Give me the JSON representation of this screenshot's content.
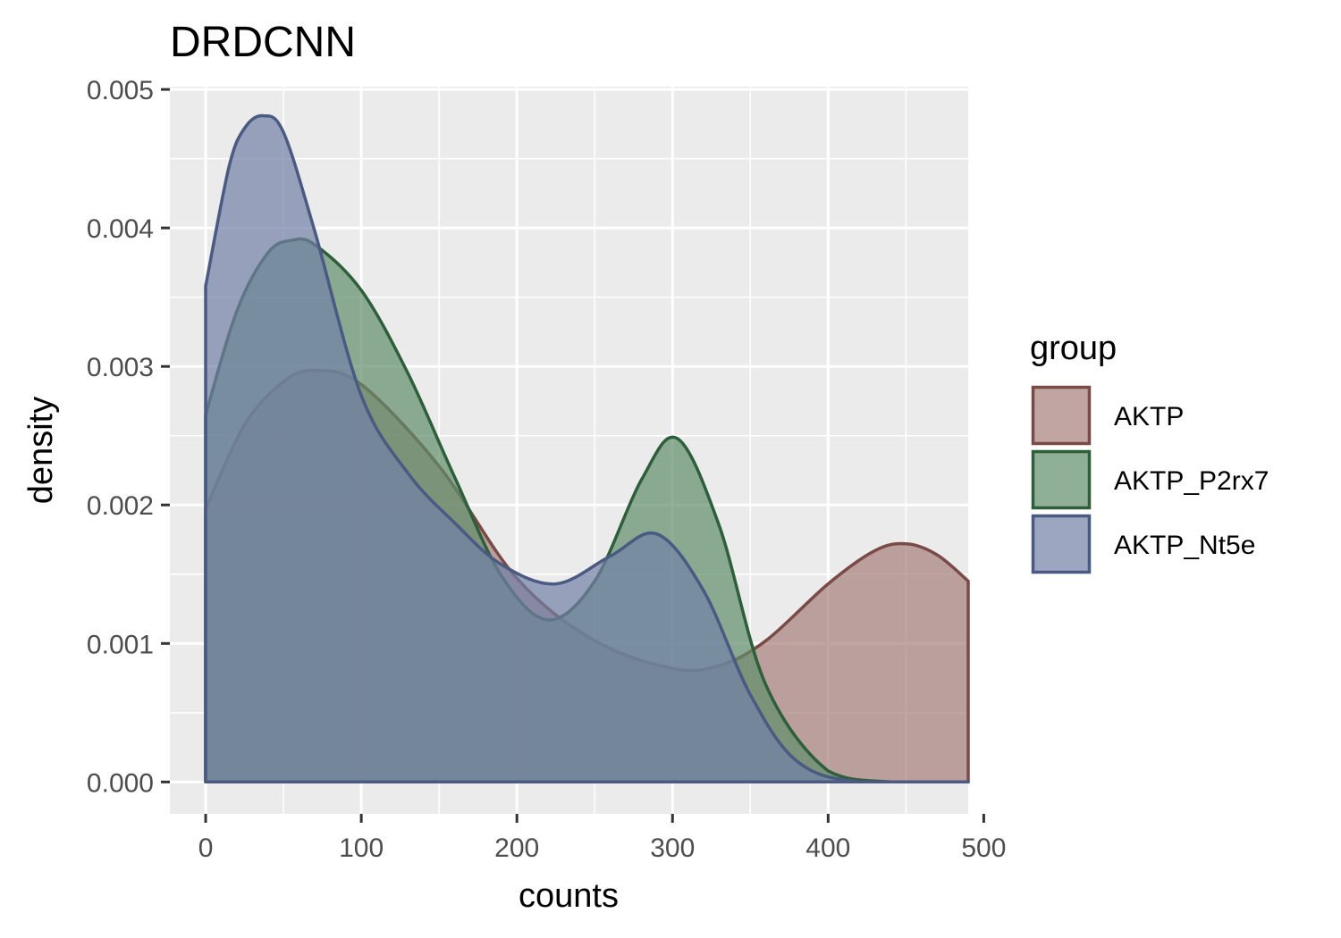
{
  "chart_data": {
    "type": "area",
    "title": "DRDCNN",
    "xlabel": "counts",
    "ylabel": "density",
    "xlim": [
      -23,
      490
    ],
    "ylim": [
      -0.00023,
      0.00502
    ],
    "x_ticks": [
      0,
      100,
      200,
      300,
      400,
      500
    ],
    "x_tick_labels": [
      "0",
      "100",
      "200",
      "300",
      "400",
      "500"
    ],
    "y_ticks": [
      0,
      0.001,
      0.002,
      0.003,
      0.004,
      0.005
    ],
    "y_tick_labels": [
      "0.000",
      "0.001",
      "0.002",
      "0.003",
      "0.004",
      "0.005"
    ],
    "grid": true,
    "legend": {
      "title": "group",
      "position": "right"
    },
    "series": [
      {
        "name": "AKTP",
        "color": "#7a4a47",
        "fill": "#a57f7c",
        "x": [
          0,
          25,
          50,
          70,
          100,
          150,
          200,
          250,
          300,
          330,
          360,
          400,
          430,
          450,
          470,
          490
        ],
        "values": [
          0.00197,
          0.00258,
          0.00289,
          0.00297,
          0.00287,
          0.00228,
          0.00147,
          0.00102,
          0.00082,
          0.00084,
          0.00102,
          0.00143,
          0.00167,
          0.00172,
          0.00164,
          0.00145
        ]
      },
      {
        "name": "AKTP_P2rx7",
        "color": "#2f5f3a",
        "fill": "#5f8f69",
        "x": [
          0,
          20,
          40,
          55,
          70,
          100,
          130,
          160,
          190,
          220,
          250,
          280,
          303,
          330,
          360,
          400,
          440,
          490
        ],
        "values": [
          0.00265,
          0.0034,
          0.00382,
          0.00391,
          0.00388,
          0.00355,
          0.00295,
          0.0022,
          0.00149,
          0.00117,
          0.00145,
          0.00218,
          0.00248,
          0.00185,
          0.0007,
          8e-05,
          0.0,
          0.0
        ]
      },
      {
        "name": "AKTP_Nt5e",
        "color": "#4a5a82",
        "fill": "#7280a6",
        "x": [
          0,
          15,
          25,
          37,
          50,
          70,
          100,
          130,
          160,
          190,
          225,
          260,
          290,
          320,
          350,
          380,
          420,
          490
        ],
        "values": [
          0.00358,
          0.00444,
          0.00472,
          0.00481,
          0.00469,
          0.00398,
          0.00279,
          0.00223,
          0.00187,
          0.00157,
          0.00143,
          0.00163,
          0.00179,
          0.00138,
          0.00063,
          0.00015,
          0.0,
          0.0
        ]
      }
    ]
  }
}
